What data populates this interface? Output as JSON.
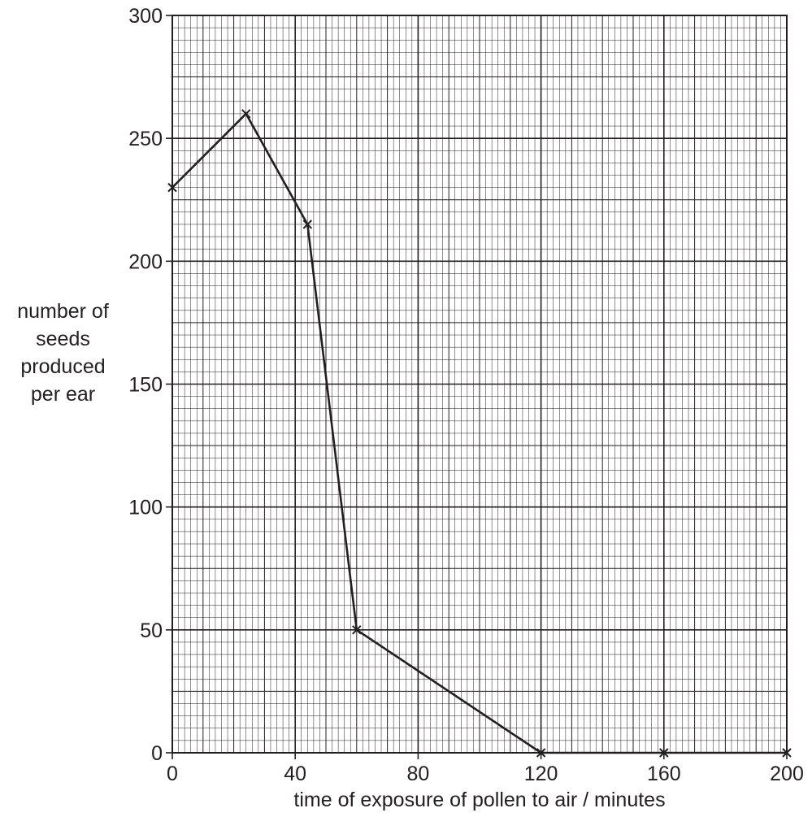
{
  "chart_data": {
    "type": "line",
    "title": "",
    "xlabel": "time of exposure of pollen to air / minutes",
    "ylabel_lines": [
      "number of",
      "seeds",
      "produced",
      "per ear"
    ],
    "xlim": [
      0,
      200
    ],
    "ylim": [
      0,
      300
    ],
    "x_ticks": [
      0,
      40,
      80,
      120,
      160,
      200
    ],
    "y_ticks": [
      0,
      50,
      100,
      150,
      200,
      250,
      300
    ],
    "grid": true,
    "marker": "cross",
    "series": [
      {
        "x": [
          0,
          24,
          44,
          60,
          120,
          160,
          200
        ],
        "y": [
          230,
          260,
          215,
          50,
          0,
          0,
          0
        ]
      }
    ]
  }
}
